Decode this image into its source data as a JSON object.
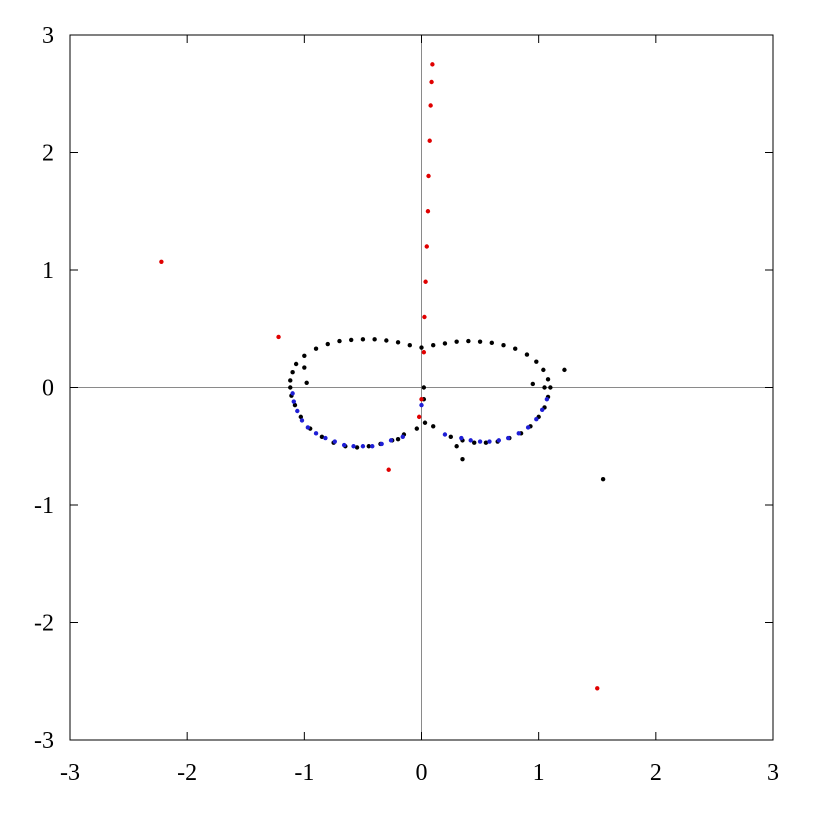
{
  "chart_data": {
    "type": "scatter",
    "title": "",
    "xlabel": "",
    "ylabel": "",
    "xlim": [
      -3,
      3
    ],
    "ylim": [
      -3,
      3
    ],
    "x_ticks": [
      -3,
      -2,
      -1,
      0,
      1,
      2,
      3
    ],
    "y_ticks": [
      -3,
      -2,
      -1,
      0,
      1,
      2,
      3
    ],
    "x_tick_labels": [
      "-3",
      "-2",
      "-1",
      "0",
      "1",
      "2",
      "3"
    ],
    "y_tick_labels": [
      "-3",
      "-2",
      "-1",
      "0",
      "1",
      "2",
      "3"
    ],
    "grid": false,
    "zero_axes": true,
    "legend": "none",
    "colors": {
      "black": "#000000",
      "blue": "#1f1fd6",
      "red": "#e00000",
      "axis": "#8a8a8a"
    },
    "series": [
      {
        "color": "black",
        "shape": "closed curve (upper lobes)",
        "points": [
          [
            0.0,
            0.34
          ],
          [
            -0.1,
            0.36
          ],
          [
            -0.2,
            0.385
          ],
          [
            -0.3,
            0.4
          ],
          [
            -0.4,
            0.41
          ],
          [
            -0.5,
            0.41
          ],
          [
            -0.6,
            0.405
          ],
          [
            -0.7,
            0.395
          ],
          [
            -0.8,
            0.37
          ],
          [
            -0.9,
            0.33
          ],
          [
            -1.0,
            0.27
          ],
          [
            -1.07,
            0.2
          ],
          [
            -1.1,
            0.13
          ],
          [
            -1.12,
            0.06
          ],
          [
            -1.12,
            0.0
          ],
          [
            -1.11,
            -0.07
          ],
          [
            -1.08,
            -0.15
          ],
          [
            -1.03,
            -0.25
          ],
          [
            -0.95,
            -0.35
          ],
          [
            -0.85,
            -0.42
          ],
          [
            -0.75,
            -0.47
          ],
          [
            -0.65,
            -0.5
          ],
          [
            -0.55,
            -0.51
          ],
          [
            -0.45,
            -0.5
          ],
          [
            -0.35,
            -0.48
          ],
          [
            -0.25,
            -0.45
          ],
          [
            -0.15,
            -0.4
          ],
          [
            0.1,
            0.36
          ],
          [
            0.2,
            0.375
          ],
          [
            0.3,
            0.39
          ],
          [
            0.4,
            0.395
          ],
          [
            0.5,
            0.39
          ],
          [
            0.6,
            0.38
          ],
          [
            0.7,
            0.36
          ],
          [
            0.8,
            0.33
          ],
          [
            0.9,
            0.28
          ],
          [
            0.98,
            0.22
          ],
          [
            1.04,
            0.15
          ],
          [
            1.08,
            0.07
          ],
          [
            1.1,
            0.0
          ],
          [
            1.08,
            -0.08
          ],
          [
            1.05,
            -0.17
          ],
          [
            1.0,
            -0.25
          ],
          [
            0.93,
            -0.33
          ],
          [
            0.85,
            -0.39
          ],
          [
            0.75,
            -0.43
          ],
          [
            0.65,
            -0.46
          ],
          [
            0.55,
            -0.47
          ],
          [
            0.45,
            -0.47
          ],
          [
            0.35,
            -0.45
          ],
          [
            0.25,
            -0.42
          ],
          [
            1.22,
            0.15
          ],
          [
            1.55,
            -0.78
          ],
          [
            0.35,
            -0.61
          ],
          [
            -1.0,
            0.17
          ],
          [
            -0.98,
            0.04
          ],
          [
            0.95,
            0.03
          ],
          [
            1.05,
            0.0
          ],
          [
            0.02,
            0.0
          ],
          [
            0.02,
            -0.1
          ],
          [
            0.03,
            -0.3
          ],
          [
            -0.04,
            -0.35
          ],
          [
            0.1,
            -0.33
          ],
          [
            0.3,
            -0.5
          ],
          [
            -0.2,
            -0.44
          ]
        ]
      },
      {
        "color": "blue",
        "shape": "lower lobes",
        "points": [
          [
            -1.1,
            -0.05
          ],
          [
            -1.09,
            -0.12
          ],
          [
            -1.06,
            -0.2
          ],
          [
            -1.02,
            -0.28
          ],
          [
            -0.97,
            -0.34
          ],
          [
            -0.9,
            -0.39
          ],
          [
            -0.82,
            -0.43
          ],
          [
            -0.74,
            -0.46
          ],
          [
            -0.66,
            -0.49
          ],
          [
            -0.58,
            -0.5
          ],
          [
            -0.5,
            -0.5
          ],
          [
            -0.42,
            -0.5
          ],
          [
            -0.34,
            -0.48
          ],
          [
            -0.26,
            -0.45
          ],
          [
            -0.16,
            -0.42
          ],
          [
            1.07,
            -0.1
          ],
          [
            1.03,
            -0.19
          ],
          [
            0.98,
            -0.27
          ],
          [
            0.91,
            -0.34
          ],
          [
            0.83,
            -0.39
          ],
          [
            0.74,
            -0.43
          ],
          [
            0.66,
            -0.45
          ],
          [
            0.58,
            -0.46
          ],
          [
            0.5,
            -0.46
          ],
          [
            0.42,
            -0.45
          ],
          [
            0.34,
            -0.43
          ],
          [
            0.2,
            -0.4
          ],
          [
            0.0,
            -0.15
          ]
        ]
      },
      {
        "color": "red",
        "shape": "stem and outliers",
        "points": [
          [
            0.02,
            0.3
          ],
          [
            0.025,
            0.6
          ],
          [
            0.035,
            0.9
          ],
          [
            0.045,
            1.2
          ],
          [
            0.055,
            1.5
          ],
          [
            0.06,
            1.8
          ],
          [
            0.07,
            2.1
          ],
          [
            0.078,
            2.4
          ],
          [
            0.086,
            2.6
          ],
          [
            0.093,
            2.75
          ],
          [
            -2.22,
            1.07
          ],
          [
            -1.22,
            0.43
          ],
          [
            -0.28,
            -0.7
          ],
          [
            1.5,
            -2.56
          ],
          [
            -0.02,
            -0.25
          ],
          [
            0.0,
            -0.1
          ]
        ]
      }
    ]
  }
}
